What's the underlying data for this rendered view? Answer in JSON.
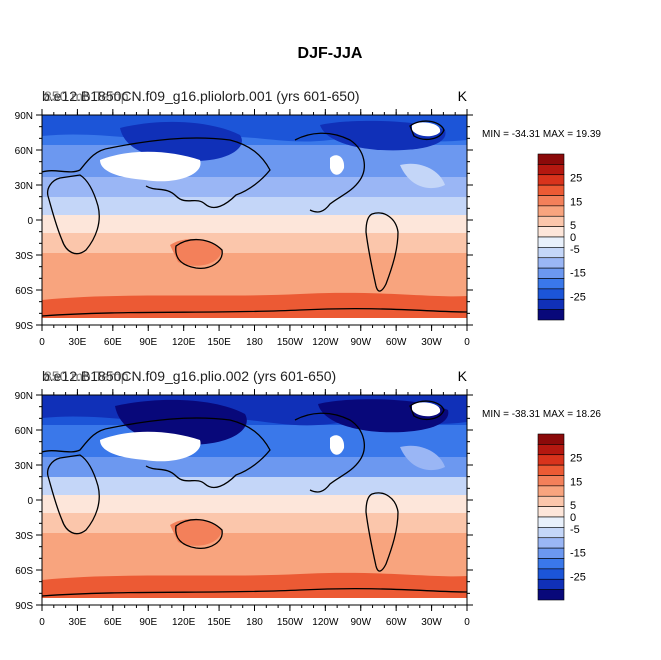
{
  "figure": {
    "title": "DJF-JJA"
  },
  "chart_data": [
    {
      "type": "heatmap",
      "title": "850 mb Temp",
      "subtitle": "b.e12.B1850CN.f09_g16.pliolorb.001 (yrs 601-650)",
      "units": "K",
      "stats": "MIN = -34.31  MAX =  19.39",
      "min": -34.31,
      "max": 19.39,
      "ylabels": [
        "90N",
        "60N",
        "30N",
        "0",
        "30S",
        "60S",
        "90S"
      ],
      "yvals": [
        90,
        60,
        30,
        0,
        -30,
        -60,
        -90
      ],
      "xlabels": [
        "0",
        "30E",
        "60E",
        "90E",
        "120E",
        "150E",
        "180",
        "150W",
        "120W",
        "90W",
        "60W",
        "30W",
        "0"
      ],
      "xvals": [
        0,
        30,
        60,
        90,
        120,
        150,
        180,
        210,
        240,
        270,
        300,
        330,
        360
      ],
      "xlim": [
        0,
        360
      ],
      "ylim": [
        -90,
        90
      ]
    },
    {
      "type": "heatmap",
      "title": "850 mb Temp",
      "subtitle": "b.e12.B1850CN.f09_g16.plio.002 (yrs 601-650)",
      "units": "K",
      "stats": "MIN = -38.31  MAX =  18.26",
      "min": -38.31,
      "max": 18.26,
      "ylabels": [
        "90N",
        "60N",
        "30N",
        "0",
        "30S",
        "60S",
        "90S"
      ],
      "yvals": [
        90,
        60,
        30,
        0,
        -30,
        -60,
        -90
      ],
      "xlabels": [
        "0",
        "30E",
        "60E",
        "90E",
        "120E",
        "150E",
        "180",
        "150W",
        "120W",
        "90W",
        "60W",
        "30W",
        "0"
      ],
      "xvals": [
        0,
        30,
        60,
        90,
        120,
        150,
        180,
        210,
        240,
        270,
        300,
        330,
        360
      ],
      "xlim": [
        0,
        360
      ],
      "ylim": [
        -90,
        90
      ]
    }
  ],
  "colorbar": {
    "colors": [
      "#08087a",
      "#1030b8",
      "#1c55d8",
      "#3a78ea",
      "#6c98f0",
      "#9ab6f5",
      "#c4d6f8",
      "#e8f0fb",
      "#fde6da",
      "#fbc6ab",
      "#f8a47e",
      "#f3805a",
      "#ec5a34",
      "#d8331c",
      "#b41810",
      "#8b0a0a"
    ],
    "tick_labels": [
      "25",
      "15",
      "5",
      "0",
      "-5",
      "-15",
      "-25"
    ],
    "tick_values": [
      25,
      15,
      5,
      0,
      -5,
      -15,
      -25
    ]
  },
  "colors": {
    "land_missing": "#ffffff",
    "coast": "#000000"
  }
}
